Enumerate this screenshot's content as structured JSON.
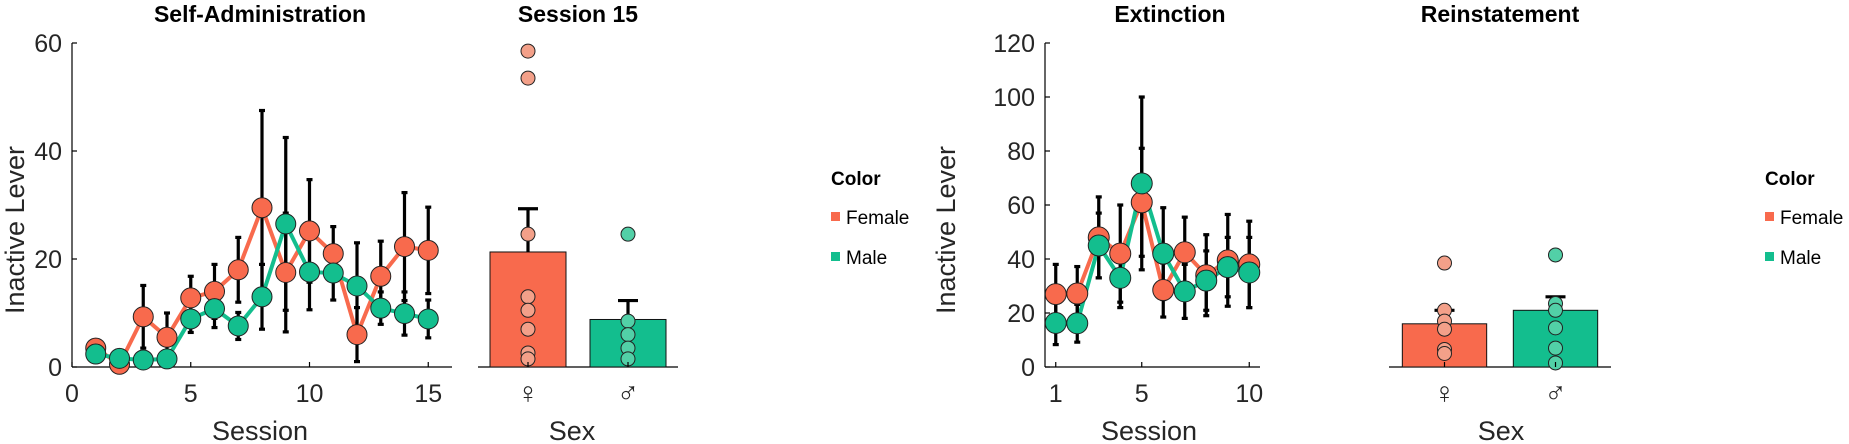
{
  "colors": {
    "female": "#F86A4D",
    "male": "#13BE8E",
    "female_dot": "#F3A089",
    "male_dot": "#52D0A7"
  },
  "legend": {
    "title": "Color",
    "female": "Female",
    "male": "Male"
  },
  "chart_data": [
    {
      "type": "line",
      "title": "Self-Administration",
      "xlabel": "Session",
      "ylabel": "Inactive Lever",
      "xlim": [
        0,
        16
      ],
      "ylim": [
        0,
        60
      ],
      "xticks": [
        0,
        5,
        10,
        15
      ],
      "yticks": [
        0,
        20,
        40,
        60
      ],
      "x": [
        1,
        2,
        3,
        4,
        5,
        6,
        7,
        8,
        9,
        10,
        11,
        12,
        13,
        14,
        15
      ],
      "series": [
        {
          "name": "Female",
          "values": [
            3.5,
            0.5,
            9.3,
            5.5,
            12.8,
            14,
            18,
            29.5,
            17.5,
            25.2,
            21,
            6,
            16.8,
            22.3,
            21.6
          ],
          "err": [
            1,
            0.5,
            5.8,
            4.5,
            4,
            5,
            6,
            18,
            11,
            9.5,
            5,
            5,
            6.5,
            10,
            8
          ]
        },
        {
          "name": "Male",
          "values": [
            2.4,
            1.6,
            1.3,
            1.5,
            8.9,
            10.8,
            7.6,
            13,
            26.5,
            17.6,
            17.4,
            15,
            10.9,
            9.9,
            8.9
          ],
          "err": [
            0.8,
            0.8,
            0.5,
            0.8,
            2.5,
            3.5,
            2.5,
            6,
            16,
            7,
            5,
            8,
            3,
            4,
            3.5
          ]
        }
      ]
    },
    {
      "type": "bar",
      "title": "Session 15",
      "xlabel": "Sex",
      "ylabel": "",
      "ylim": [
        0,
        60
      ],
      "categories": [
        "♀",
        "♂"
      ],
      "values": [
        21.3,
        8.8
      ],
      "err": [
        8,
        3.5
      ],
      "points": [
        [
          58.5,
          53.5,
          24.6,
          13,
          10.5,
          7,
          2.6,
          1.5
        ],
        [
          24.6,
          8.5,
          6,
          3.5,
          1.5
        ]
      ]
    },
    {
      "type": "line",
      "title": "Extinction",
      "xlabel": "Session",
      "ylabel": "Inactive Lever",
      "xlim": [
        0.5,
        10.5
      ],
      "ylim": [
        0,
        120
      ],
      "xticks": [
        1,
        5,
        10
      ],
      "yticks": [
        0,
        20,
        40,
        60,
        80,
        100,
        120
      ],
      "x": [
        1,
        2,
        3,
        4,
        5,
        6,
        7,
        8,
        9,
        10
      ],
      "series": [
        {
          "name": "Female",
          "values": [
            27,
            27.2,
            48,
            42,
            61,
            28.5,
            42.5,
            34,
            39.5,
            38
          ],
          "err": [
            11,
            10,
            15,
            18,
            20,
            10,
            13,
            15,
            17,
            16
          ]
        },
        {
          "name": "Male",
          "values": [
            16.3,
            16.2,
            45,
            33,
            68,
            42,
            28,
            32,
            37,
            35
          ],
          "err": [
            8,
            7,
            12,
            11,
            32,
            17,
            10,
            11,
            11,
            13
          ]
        }
      ]
    },
    {
      "type": "bar",
      "title": "Reinstatement",
      "xlabel": "Sex",
      "ylabel": "",
      "ylim": [
        0,
        120
      ],
      "categories": [
        "♀",
        "♂"
      ],
      "values": [
        16,
        21
      ],
      "err": [
        5,
        5
      ],
      "points": [
        [
          38.5,
          21,
          17,
          14,
          6.5,
          5
        ],
        [
          41.5,
          23.5,
          21,
          14.5,
          7,
          1.5
        ]
      ]
    }
  ]
}
